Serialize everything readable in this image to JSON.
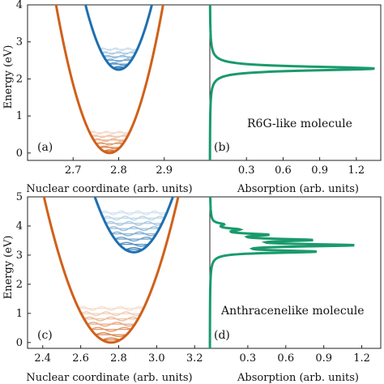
{
  "chart_data": [
    {
      "panel": "(a)",
      "type": "line",
      "xlabel": "Nuclear coordinate (arb. units)",
      "ylabel": "Energy (eV)",
      "xlim": [
        2.6,
        3.0
      ],
      "ylim": [
        -0.2,
        4.0
      ],
      "x_ticks": [
        "2.7",
        "2.8",
        "2.9"
      ],
      "y_ticks": [
        "0",
        "1",
        "2",
        "3",
        "4"
      ],
      "series": [
        {
          "role": "ground-state",
          "color": "#d0601a",
          "min_x": 2.78,
          "min_y": 0.0,
          "k": 290
        },
        {
          "role": "excited-state",
          "color": "#1f6fb0",
          "min_x": 2.8,
          "min_y": 2.25,
          "k": 330
        }
      ],
      "vib_levels": {
        "ground": {
          "count": 6,
          "spacing": 0.1,
          "color": "#d0601a"
        },
        "excited": {
          "count": 6,
          "spacing": 0.1,
          "color": "#1f6fb0"
        }
      }
    },
    {
      "panel": "(b)",
      "type": "line",
      "xlabel": "Absorption (arb. units)",
      "annotation": "R6G-like molecule",
      "xlim": [
        0,
        1.4
      ],
      "ylim": [
        -0.2,
        4.0
      ],
      "x_ticks": [
        "0.3",
        "0.6",
        "0.9",
        "1.2"
      ],
      "series": [
        {
          "role": "absorption",
          "color": "#1a9a6c",
          "peaks": [
            {
              "E": 2.28,
              "A": 1.35,
              "w": 0.065
            }
          ]
        }
      ]
    },
    {
      "panel": "(c)",
      "type": "line",
      "xlabel": "Nuclear coordinate (arb. units)",
      "ylabel": "Energy (eV)",
      "xlim": [
        2.32,
        3.28
      ],
      "ylim": [
        -0.2,
        5.0
      ],
      "x_ticks": [
        "2.4",
        "2.6",
        "2.8",
        "3.0",
        "3.2"
      ],
      "y_ticks": [
        "0",
        "1",
        "2",
        "3",
        "4",
        "5"
      ],
      "series": [
        {
          "role": "ground-state",
          "color": "#d0601a",
          "min_x": 2.76,
          "min_y": 0.0,
          "k": 40
        },
        {
          "role": "excited-state",
          "color": "#1f6fb0",
          "min_x": 2.88,
          "min_y": 3.1,
          "k": 45
        }
      ],
      "vib_levels": {
        "ground": {
          "count": 7,
          "spacing": 0.18,
          "color": "#d0601a"
        },
        "excited": {
          "count": 8,
          "spacing": 0.18,
          "color": "#1f6fb0"
        }
      }
    },
    {
      "panel": "(d)",
      "type": "line",
      "xlabel": "Absorption (arb. units)",
      "annotation": "Anthracenelike molecule",
      "xlim": [
        0,
        1.35
      ],
      "ylim": [
        -0.2,
        5.0
      ],
      "x_ticks": [
        "0.3",
        "0.6",
        "0.9",
        "1.2"
      ],
      "series": [
        {
          "role": "absorption",
          "color": "#1a9a6c",
          "peaks": [
            {
              "E": 3.12,
              "A": 0.78,
              "w": 0.05
            },
            {
              "E": 3.34,
              "A": 1.05,
              "w": 0.05
            },
            {
              "E": 3.52,
              "A": 0.7,
              "w": 0.05
            },
            {
              "E": 3.7,
              "A": 0.38,
              "w": 0.05
            },
            {
              "E": 3.88,
              "A": 0.18,
              "w": 0.05
            },
            {
              "E": 4.06,
              "A": 0.08,
              "w": 0.05
            }
          ]
        }
      ]
    }
  ]
}
